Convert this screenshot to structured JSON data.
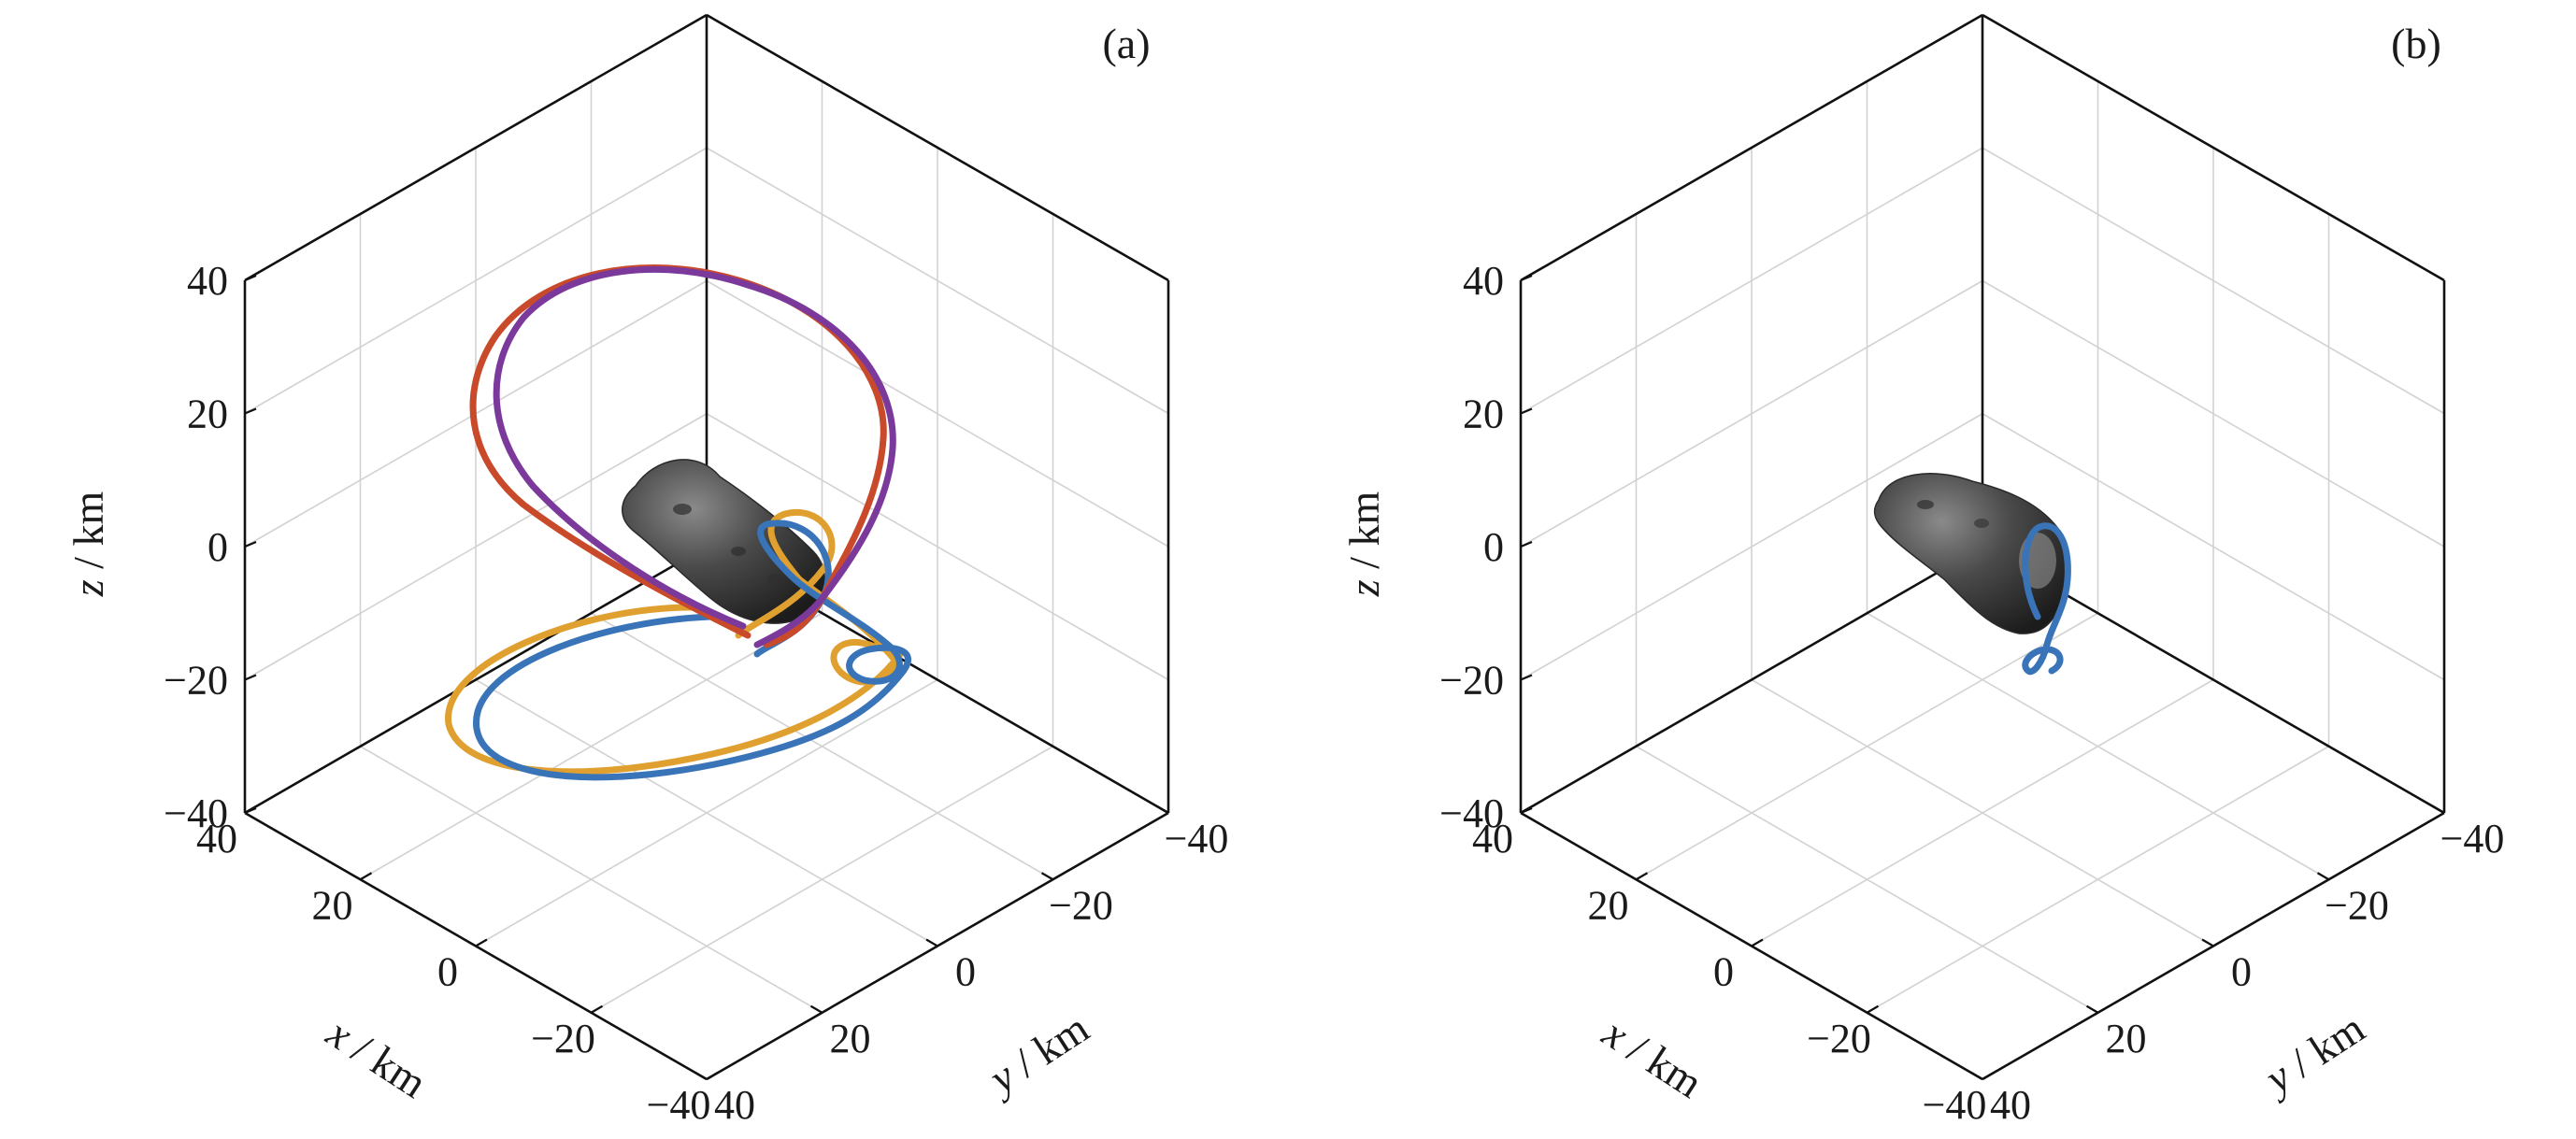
{
  "chart_data": [
    {
      "type": "line",
      "panel_label": "(a)",
      "xlabel_var": "x",
      "xlabel_unit": " / km",
      "ylabel_var": "y",
      "ylabel_unit": " / km",
      "zlabel_var": "z",
      "zlabel_unit": " / km",
      "xlim": [
        -40,
        40
      ],
      "ylim": [
        -40,
        40
      ],
      "zlim": [
        -40,
        40
      ],
      "x_ticks": [
        "40",
        "20",
        "0",
        "−20",
        "−40"
      ],
      "y_ticks": [
        "−40",
        "−20",
        "0",
        "20",
        "40"
      ],
      "z_ticks": [
        "40",
        "20",
        "0",
        "−20",
        "−40"
      ],
      "grid": true,
      "asteroid": "elongated asteroid shape model",
      "series": [
        {
          "color": "#e0a030",
          "shape": "orbit-amber"
        },
        {
          "color": "#3a74b8",
          "shape": "orbit-blue"
        },
        {
          "color": "#c94a2a",
          "shape": "orbit-red"
        },
        {
          "color": "#7b3a9b",
          "shape": "orbit-purple"
        }
      ]
    },
    {
      "type": "line",
      "panel_label": "(b)",
      "xlabel_var": "x",
      "xlabel_unit": " / km",
      "ylabel_var": "y",
      "ylabel_unit": " / km",
      "zlabel_var": "z",
      "zlabel_unit": " / km",
      "xlim": [
        -40,
        40
      ],
      "ylim": [
        -40,
        40
      ],
      "zlim": [
        -40,
        40
      ],
      "x_ticks": [
        "40",
        "20",
        "0",
        "−20",
        "−40"
      ],
      "y_ticks": [
        "−40",
        "−20",
        "0",
        "20",
        "40"
      ],
      "z_ticks": [
        "40",
        "20",
        "0",
        "−20",
        "−40"
      ],
      "grid": true,
      "asteroid": "elongated asteroid shape model",
      "series": [
        {
          "color": "#3a74b8",
          "shape": "orbit-blue-small"
        }
      ]
    }
  ]
}
